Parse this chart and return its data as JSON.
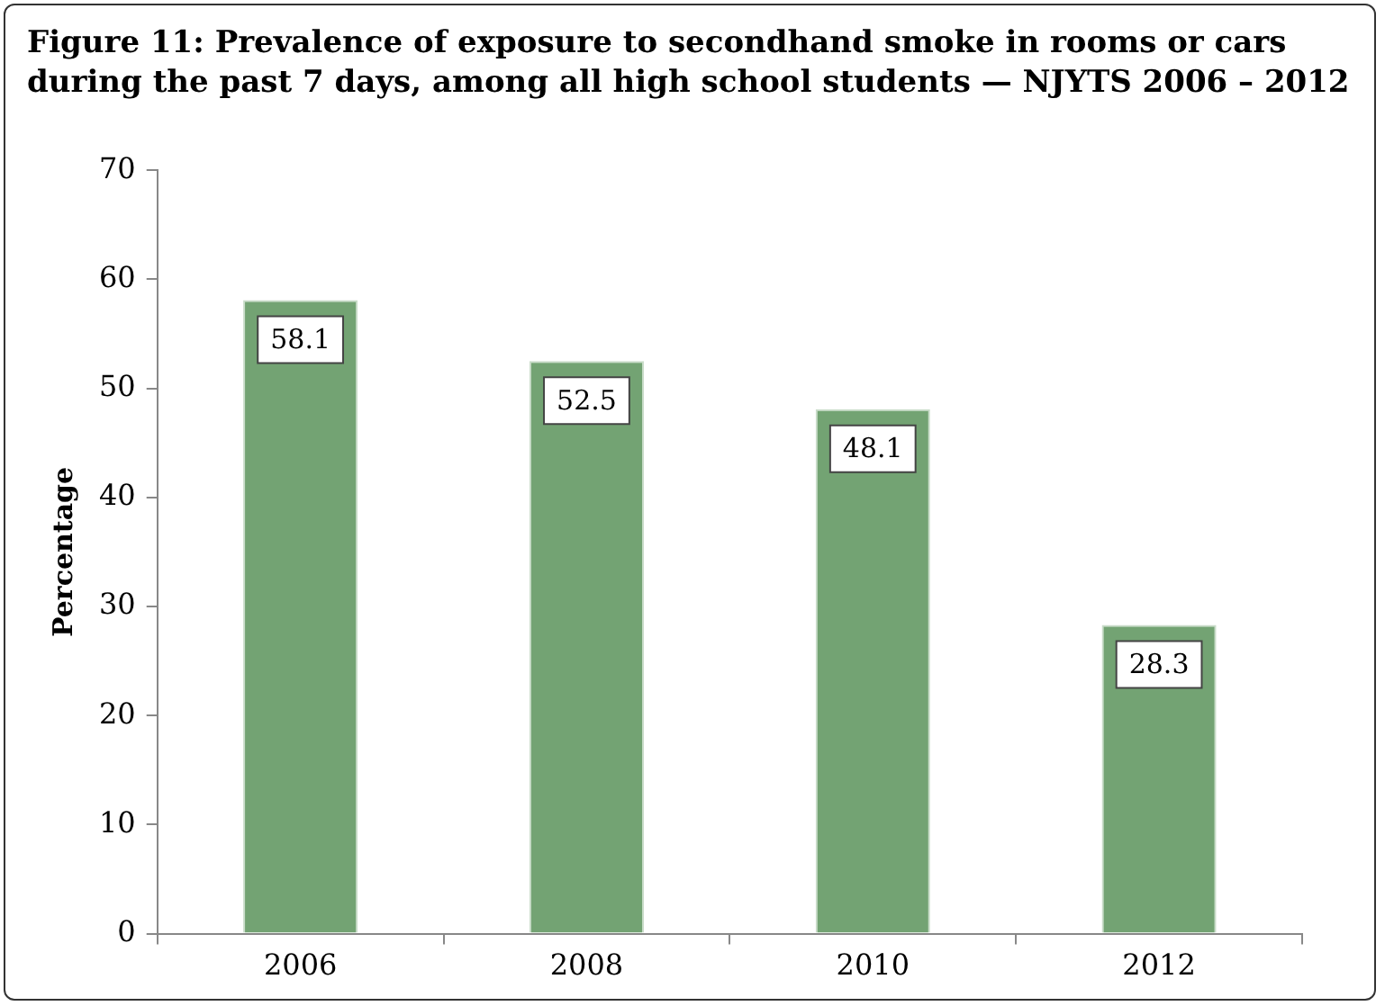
{
  "chart_data": {
    "type": "bar",
    "title": "Figure 11: Prevalence of exposure to secondhand smoke in rooms or cars during the past 7 days, among all high school students — NJYTS 2006 – 2012",
    "ylabel": "Percentage",
    "categories": [
      "2006",
      "2008",
      "2010",
      "2012"
    ],
    "values": [
      58.1,
      52.5,
      48.1,
      28.3
    ],
    "color": "#73a373",
    "ylim": [
      0,
      70
    ],
    "yticks": [
      0,
      10,
      20,
      30,
      40,
      50,
      60,
      70
    ],
    "grid": false,
    "legend": false,
    "data_labels": true
  }
}
